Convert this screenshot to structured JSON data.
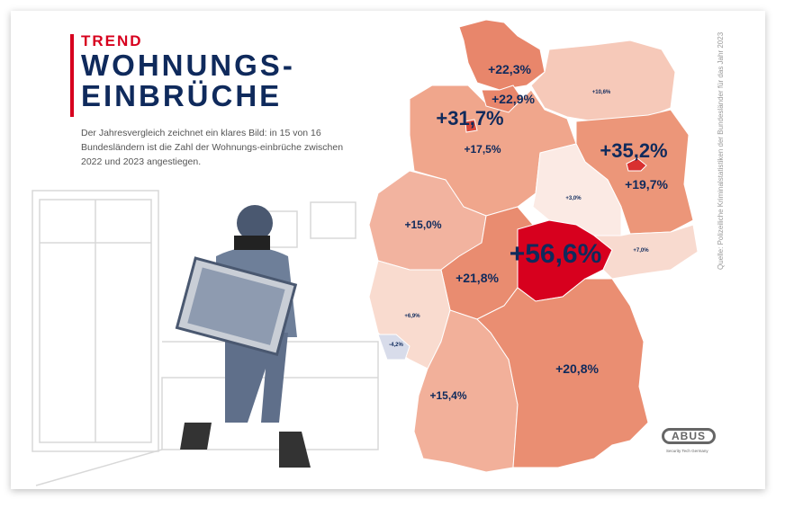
{
  "kicker": "TREND",
  "title_line1": "WOHNUNGS-",
  "title_line2": "EINBRÜCHE",
  "description": "Der Jahresvergleich zeichnet ein klares Bild: in 15 von 16 Bundesländern ist die Zahl der Wohnungs-einbrüche zwischen 2022 und 2023 angestiegen.",
  "source": "Quelle: Polizeiliche Kriminalstatistiken der Bundesländer für das Jahr 2023",
  "logo": {
    "text": "ABUS",
    "tagline": "Security Tech Germany"
  },
  "colors": {
    "accent": "#d7001e",
    "navy": "#0f2a5c"
  },
  "states": [
    {
      "id": "sh",
      "value": "+22,3%",
      "color": "#e8866b"
    },
    {
      "id": "hh",
      "value": "+22,9%",
      "color": "#e8866b"
    },
    {
      "id": "mv",
      "value": "+10,6%",
      "color": "#f6c9b9"
    },
    {
      "id": "hb",
      "value": "+31,7%",
      "color": "#d9493a"
    },
    {
      "id": "ni",
      "value": "+17,5%",
      "color": "#f0a68c"
    },
    {
      "id": "be",
      "value": "+35,2%",
      "color": "#d93030"
    },
    {
      "id": "bb",
      "value": "+19,7%",
      "color": "#ec9679"
    },
    {
      "id": "st",
      "value": "+3,0%",
      "color": "#fbeae4"
    },
    {
      "id": "nw",
      "value": "+15,0%",
      "color": "#f2b39f"
    },
    {
      "id": "he",
      "value": "+21,8%",
      "color": "#e98c70"
    },
    {
      "id": "th",
      "value": "+56,6%",
      "color": "#d7001e"
    },
    {
      "id": "sn",
      "value": "+7,0%",
      "color": "#f8dacf"
    },
    {
      "id": "rp",
      "value": "+6,9%",
      "color": "#f9dbcf"
    },
    {
      "id": "sl",
      "value": "-4,2%",
      "color": "#d8dcea"
    },
    {
      "id": "bw",
      "value": "+15,4%",
      "color": "#f2b09a"
    },
    {
      "id": "by",
      "value": "+20,8%",
      "color": "#ea8e72"
    }
  ]
}
